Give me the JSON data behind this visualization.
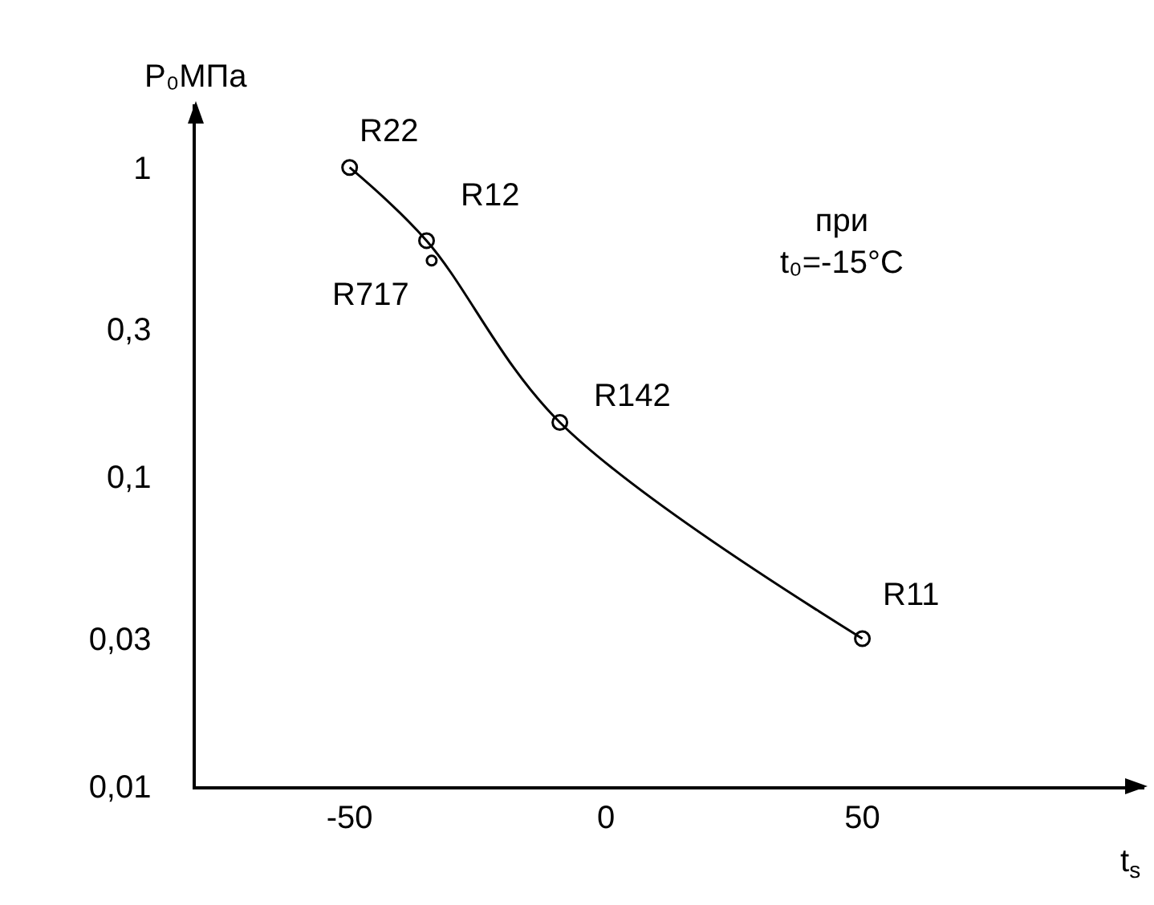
{
  "chart_data": {
    "type": "line",
    "xlabel": "t$_{s}$",
    "ylabel": "P₀МПа",
    "log": "y",
    "grid": false,
    "marker": "circle",
    "line_style": "solid",
    "xlim": [
      -80,
      105
    ],
    "xticks": [
      -50,
      0,
      50
    ],
    "ylim": [
      0.01,
      1.6
    ],
    "yticks": [
      1,
      {
        "value": 0.3,
        "label": "0,3"
      },
      {
        "value": 0.1,
        "label": "0,1"
      },
      {
        "value": 0.03,
        "label": "0,03"
      },
      {
        "value": 0.01,
        "label": "0,01"
      }
    ],
    "series": [
      {
        "color": "#000000",
        "x": [
          -50,
          -35,
          -9,
          50
        ],
        "values": [
          1,
          0.58,
          0.15,
          0.03
        ]
      },
      {
        "type": "scatter",
        "color": "#000000",
        "x": [
          -34
        ],
        "values": [
          0.5
        ]
      }
    ],
    "annotations": [
      {
        "text": "R22",
        "x": -50,
        "y": 1
      },
      {
        "text": "R12",
        "x": -35,
        "y": 0.58
      },
      {
        "text": "R717",
        "x": -34,
        "y": 0.5
      },
      {
        "text": "R142",
        "x": -9,
        "y": 0.15
      },
      {
        "text": "R11",
        "x": 50,
        "y": 0.03
      },
      "при\nt₀=-15°C"
    ]
  }
}
